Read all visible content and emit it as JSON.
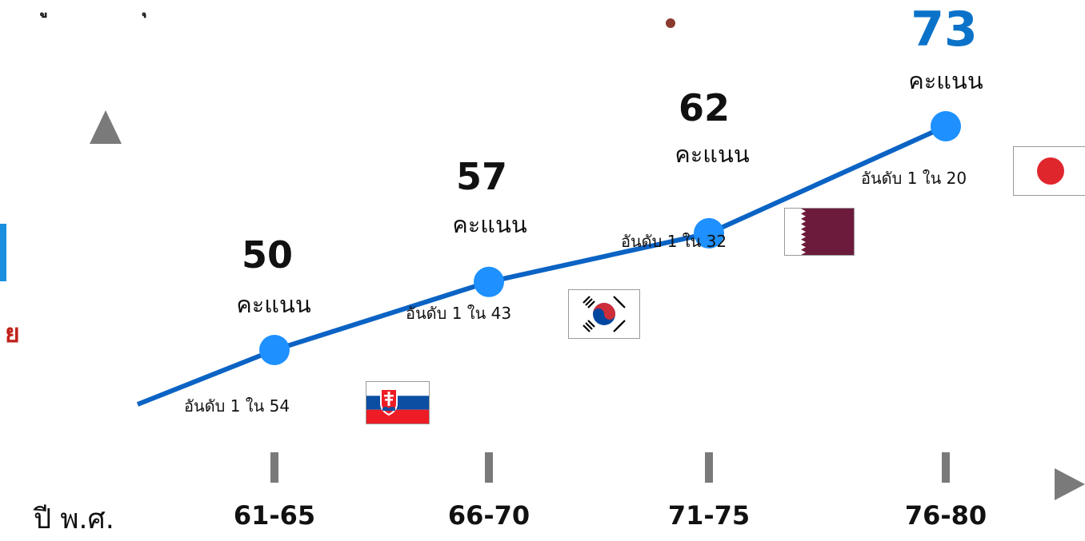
{
  "chart_data": {
    "type": "line",
    "categories": [
      "61-65",
      "66-70",
      "71-75",
      "76-80"
    ],
    "values": [
      50,
      57,
      62,
      73
    ],
    "xlabel": "ปี พ.ศ.",
    "ylabel": "",
    "point_labels": [
      {
        "value": "50",
        "unit": "คะแนน",
        "rank": "อันดับ 1 ใน 54",
        "flag": "slovakia-flag-icon"
      },
      {
        "value": "57",
        "unit": "คะแนน",
        "rank": "อันดับ 1 ใน 43",
        "flag": "south-korea-flag-icon"
      },
      {
        "value": "62",
        "unit": "คะแนน",
        "rank": "อันดับ 1 ใน 32",
        "flag": "qatar-flag-icon"
      },
      {
        "value": "73",
        "unit": "คะแนน",
        "rank": "อันดับ 1 ใน 20",
        "flag": "japan-flag-icon"
      }
    ],
    "colors": {
      "line": "#0b63c4",
      "marker": "#1e90ff",
      "axis": "#7a7a7a",
      "highlight_value": "#0b72c9",
      "header_rule": "#8b3a2e",
      "left_accent": "#1a8fe0",
      "left_text": "#c0221b"
    }
  },
  "left_fragment_text": "ย"
}
